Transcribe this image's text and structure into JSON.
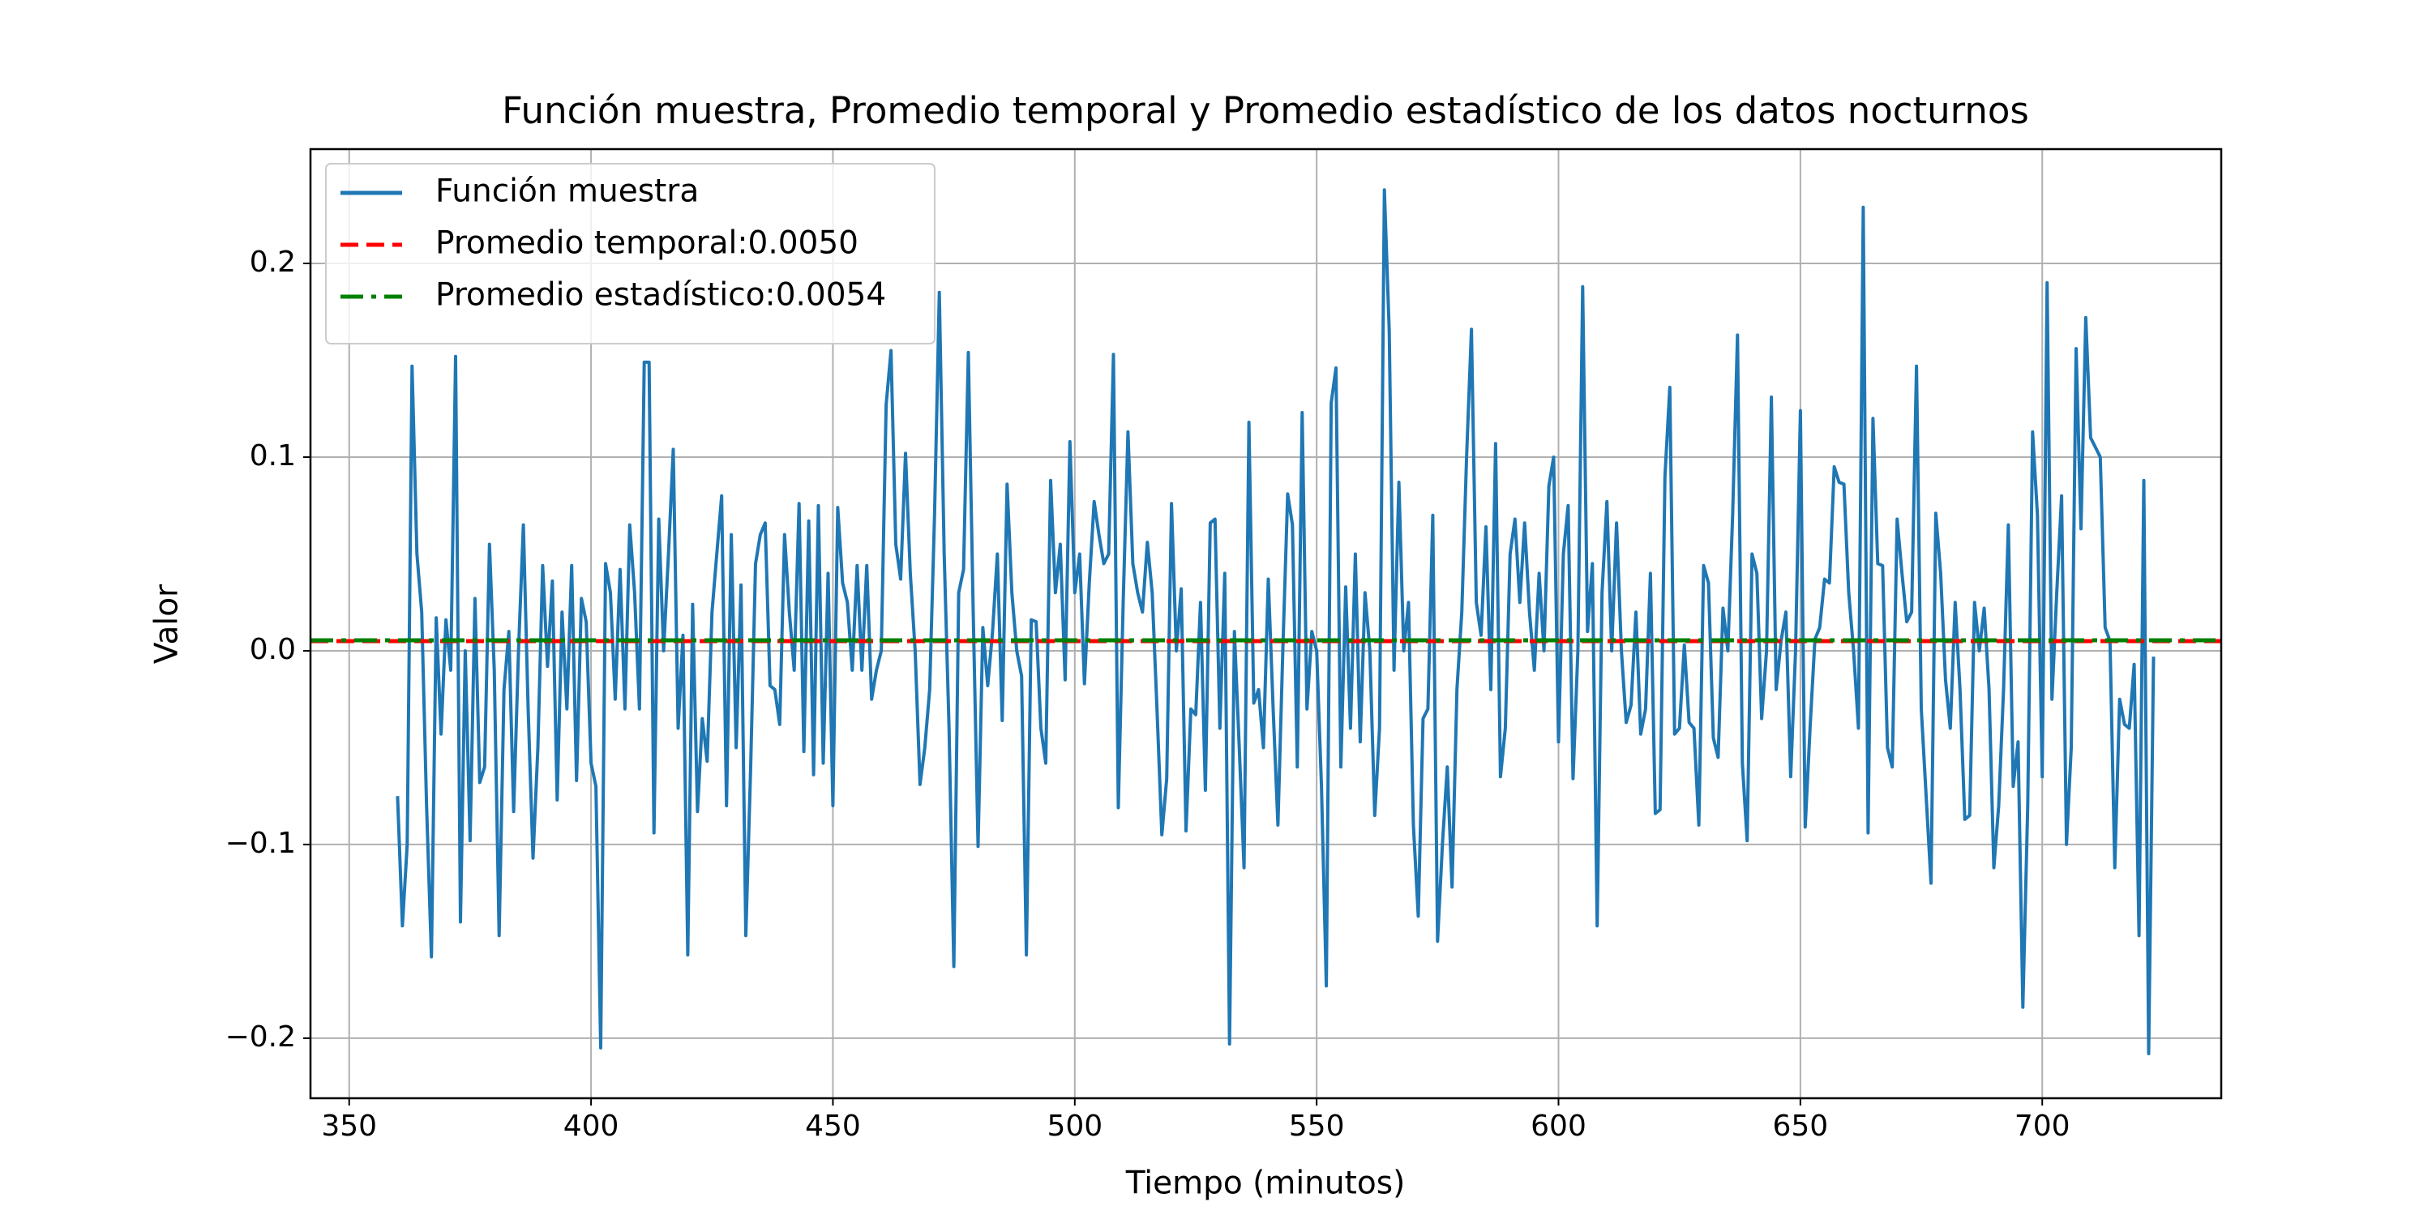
{
  "chart_data": {
    "type": "line",
    "title": "Función muestra, Promedio temporal y Promedio estadístico de los datos nocturnos",
    "x_label": "Tiempo (minutos)",
    "y_label": "Valor",
    "x": [
      360,
      361,
      362,
      363,
      364,
      365,
      366,
      367,
      368,
      369,
      370,
      371,
      372,
      373,
      374,
      375,
      376,
      377,
      378,
      379,
      380,
      381,
      382,
      383,
      384,
      385,
      386,
      387,
      388,
      389,
      390,
      391,
      392,
      393,
      394,
      395,
      396,
      397,
      398,
      399,
      400,
      401,
      402,
      403,
      404,
      405,
      406,
      407,
      408,
      409,
      410,
      411,
      412,
      413,
      414,
      415,
      416,
      417,
      418,
      419,
      420,
      421,
      422,
      423,
      424,
      425,
      426,
      427,
      428,
      429,
      430,
      431,
      432,
      433,
      434,
      435,
      436,
      437,
      438,
      439,
      440,
      441,
      442,
      443,
      444,
      445,
      446,
      447,
      448,
      449,
      450,
      451,
      452,
      453,
      454,
      455,
      456,
      457,
      458,
      459,
      460,
      461,
      462,
      463,
      464,
      465,
      466,
      467,
      468,
      469,
      470,
      471,
      472,
      473,
      474,
      475,
      476,
      477,
      478,
      479,
      480,
      481,
      482,
      483,
      484,
      485,
      486,
      487,
      488,
      489,
      490,
      491,
      492,
      493,
      494,
      495,
      496,
      497,
      498,
      499,
      500,
      501,
      502,
      503,
      504,
      505,
      506,
      507,
      508,
      509,
      510,
      511,
      512,
      513,
      514,
      515,
      516,
      517,
      518,
      519,
      520,
      521,
      522,
      523,
      524,
      525,
      526,
      527,
      528,
      529,
      530,
      531,
      532,
      533,
      534,
      535,
      536,
      537,
      538,
      539,
      540,
      541,
      542,
      543,
      544,
      545,
      546,
      547,
      548,
      549,
      550,
      551,
      552,
      553,
      554,
      555,
      556,
      557,
      558,
      559,
      560,
      561,
      562,
      563,
      564,
      565,
      566,
      567,
      568,
      569,
      570,
      571,
      572,
      573,
      574,
      575,
      576,
      577,
      578,
      579,
      580,
      581,
      582,
      583,
      584,
      585,
      586,
      587,
      588,
      589,
      590,
      591,
      592,
      593,
      594,
      595,
      596,
      597,
      598,
      599,
      600,
      601,
      602,
      603,
      604,
      605,
      606,
      607,
      608,
      609,
      610,
      611,
      612,
      613,
      614,
      615,
      616,
      617,
      618,
      619,
      620,
      621,
      622,
      623,
      624,
      625,
      626,
      627,
      628,
      629,
      630,
      631,
      632,
      633,
      634,
      635,
      636,
      637,
      638,
      639,
      640,
      641,
      642,
      643,
      644,
      645,
      646,
      647,
      648,
      649,
      650,
      651,
      652,
      653,
      654,
      655,
      656,
      657,
      658,
      659,
      660,
      661,
      662,
      663,
      664,
      665,
      666,
      667,
      668,
      669,
      670,
      671,
      672,
      673,
      674,
      675,
      676,
      677,
      678,
      679,
      680,
      681,
      682,
      683,
      684,
      685,
      686,
      687,
      688,
      689,
      690,
      691,
      692,
      693,
      694,
      695,
      696,
      697,
      698,
      699,
      700,
      701,
      702,
      703,
      704,
      705,
      706,
      707,
      708,
      709,
      710,
      711,
      712,
      713,
      714,
      715,
      716,
      717,
      718,
      719,
      720,
      721,
      722,
      723
    ],
    "series": [
      {
        "name": "Función muestra",
        "color": "#1f77b4",
        "values": [
          -0.075,
          -0.142,
          -0.1,
          0.147,
          0.05,
          0.02,
          -0.08,
          -0.158,
          0.017,
          -0.043,
          0.016,
          -0.01,
          0.152,
          -0.14,
          0.0,
          -0.098,
          0.027,
          -0.068,
          -0.06,
          0.055,
          -0.01,
          -0.147,
          -0.02,
          0.01,
          -0.083,
          0.0,
          0.065,
          -0.03,
          -0.107,
          -0.05,
          0.044,
          -0.008,
          0.036,
          -0.077,
          0.02,
          -0.03,
          0.044,
          -0.067,
          0.027,
          0.015,
          -0.058,
          -0.07,
          -0.205,
          0.045,
          0.03,
          -0.025,
          0.042,
          -0.03,
          0.065,
          0.03,
          -0.03,
          0.149,
          0.149,
          -0.094,
          0.068,
          0.0,
          0.05,
          0.104,
          -0.04,
          0.008,
          -0.157,
          0.024,
          -0.083,
          -0.035,
          -0.057,
          0.02,
          0.05,
          0.08,
          -0.08,
          0.06,
          -0.05,
          0.034,
          -0.147,
          -0.06,
          0.045,
          0.06,
          0.066,
          -0.018,
          -0.02,
          -0.038,
          0.06,
          0.02,
          -0.01,
          0.076,
          -0.052,
          0.067,
          -0.064,
          0.075,
          -0.058,
          0.04,
          -0.08,
          0.074,
          0.035,
          0.025,
          -0.01,
          0.044,
          -0.01,
          0.044,
          -0.025,
          -0.01,
          0.0,
          0.127,
          0.155,
          0.055,
          0.037,
          0.102,
          0.04,
          0.0,
          -0.069,
          -0.05,
          -0.02,
          0.07,
          0.185,
          0.05,
          -0.04,
          -0.163,
          0.03,
          0.042,
          0.154,
          0.02,
          -0.101,
          0.012,
          -0.018,
          0.01,
          0.05,
          -0.036,
          0.086,
          0.03,
          0.0,
          -0.013,
          -0.157,
          0.016,
          0.015,
          -0.04,
          -0.058,
          0.088,
          0.03,
          0.055,
          -0.015,
          0.108,
          0.03,
          0.05,
          -0.017,
          0.035,
          0.077,
          0.06,
          0.045,
          0.05,
          0.153,
          -0.081,
          0.025,
          0.113,
          0.045,
          0.03,
          0.02,
          0.056,
          0.03,
          -0.03,
          -0.095,
          -0.066,
          0.076,
          0.0,
          0.032,
          -0.093,
          -0.03,
          -0.033,
          0.025,
          -0.072,
          0.066,
          0.068,
          -0.04,
          0.04,
          -0.203,
          0.01,
          -0.05,
          -0.112,
          0.118,
          -0.027,
          -0.02,
          -0.05,
          0.037,
          -0.03,
          -0.09,
          0.0,
          0.081,
          0.065,
          -0.06,
          0.123,
          -0.03,
          0.01,
          0.0,
          -0.07,
          -0.173,
          0.128,
          0.146,
          -0.06,
          0.033,
          -0.04,
          0.05,
          -0.047,
          0.03,
          0.0,
          -0.085,
          -0.04,
          0.238,
          0.165,
          -0.01,
          0.087,
          0.0,
          0.025,
          -0.09,
          -0.137,
          -0.035,
          -0.03,
          0.07,
          -0.15,
          -0.1,
          -0.06,
          -0.122,
          -0.02,
          0.02,
          0.1,
          0.166,
          0.025,
          0.008,
          0.064,
          -0.02,
          0.107,
          -0.065,
          -0.04,
          0.05,
          0.068,
          0.025,
          0.066,
          0.02,
          -0.01,
          0.04,
          0.0,
          0.085,
          0.1,
          -0.047,
          0.05,
          0.075,
          -0.066,
          0.0,
          0.188,
          0.01,
          0.045,
          -0.142,
          0.03,
          0.077,
          0.0,
          0.066,
          0.0,
          -0.037,
          -0.028,
          0.02,
          -0.043,
          -0.03,
          0.04,
          -0.084,
          -0.082,
          0.09,
          0.136,
          -0.043,
          -0.04,
          0.003,
          -0.037,
          -0.04,
          -0.09,
          0.044,
          0.035,
          -0.045,
          -0.055,
          0.022,
          0.0,
          0.07,
          0.163,
          -0.058,
          -0.098,
          0.05,
          0.04,
          -0.035,
          0.0,
          0.131,
          -0.02,
          0.005,
          0.02,
          -0.065,
          0.0,
          0.124,
          -0.091,
          -0.04,
          0.006,
          0.012,
          0.037,
          0.035,
          0.095,
          0.087,
          0.086,
          0.03,
          0.0,
          -0.04,
          0.229,
          -0.094,
          0.12,
          0.045,
          0.044,
          -0.05,
          -0.06,
          0.068,
          0.04,
          0.015,
          0.02,
          0.147,
          -0.03,
          -0.075,
          -0.12,
          0.071,
          0.04,
          -0.015,
          -0.04,
          0.025,
          -0.02,
          -0.087,
          -0.085,
          0.025,
          0.0,
          0.022,
          -0.02,
          -0.112,
          -0.08,
          -0.02,
          0.065,
          -0.07,
          -0.047,
          -0.184,
          -0.08,
          0.113,
          0.07,
          -0.065,
          0.19,
          -0.025,
          0.03,
          0.08,
          -0.1,
          -0.05,
          0.156,
          0.063,
          0.172,
          0.11,
          0.105,
          0.1,
          0.012,
          0.005,
          -0.112,
          -0.025,
          -0.038,
          -0.04,
          -0.007,
          -0.147,
          0.088,
          -0.208,
          -0.003
        ]
      }
    ],
    "hlines": [
      {
        "name": "Promedio temporal:0.0050",
        "value": 0.005,
        "color": "#ff0000",
        "style": "dashed"
      },
      {
        "name": "Promedio estadístico:0.0054",
        "value": 0.0054,
        "color": "#008000",
        "style": "dashdot"
      }
    ],
    "xlim": [
      342,
      737
    ],
    "ylim": [
      -0.231,
      0.259
    ],
    "xticks": [
      350,
      400,
      450,
      500,
      550,
      600,
      650,
      700
    ],
    "yticks": [
      {
        "value": -0.2,
        "label": "−0.2"
      },
      {
        "value": -0.1,
        "label": "−0.1"
      },
      {
        "value": 0,
        "label": "0.0"
      },
      0.1,
      0.2
    ],
    "grid": true,
    "legend": "upper left"
  }
}
